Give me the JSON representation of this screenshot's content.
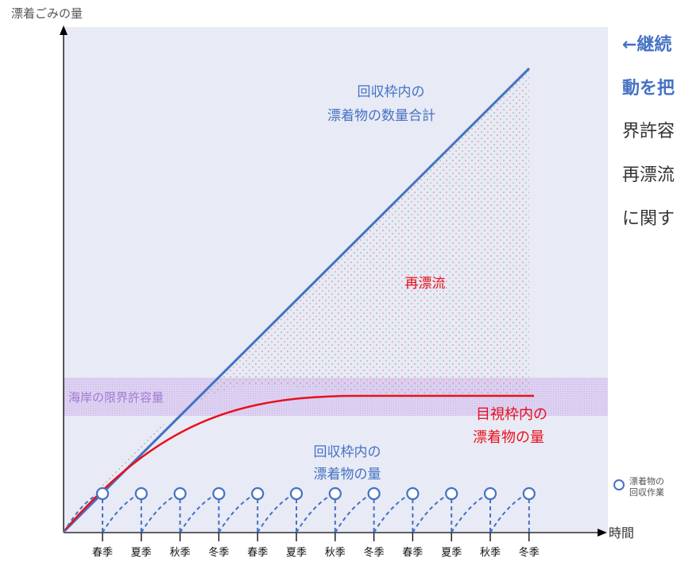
{
  "y_axis_label": "漂着ごみの量",
  "x_axis_label": "時間",
  "label_total": [
    "回収枠内の",
    "漂着物の数量合計"
  ],
  "label_refloat": "再漂流",
  "label_capacity": "海岸の限界許容量",
  "label_visual": [
    "目視枠内の",
    "漂着物の量"
  ],
  "label_collected": [
    "回収枠内の",
    "漂着物の量"
  ],
  "legend": [
    "漂着物の",
    "回収作業"
  ],
  "side_text": [
    "←継続",
    "動を把",
    "界許容",
    "再漂流",
    "に関す"
  ],
  "seasons": [
    "春季",
    "夏季",
    "秋季",
    "冬季",
    "春季",
    "夏季",
    "秋季",
    "冬季",
    "春季",
    "夏季",
    "秋季",
    "冬季"
  ],
  "colors": {
    "total_line": "#4472c4",
    "visual_line": "#e8101a",
    "collection": "#4472c4",
    "capacity_band": "#c9aee8",
    "capacity_text": "#a37ad3",
    "plot_background": "#e8eaf5"
  }
}
